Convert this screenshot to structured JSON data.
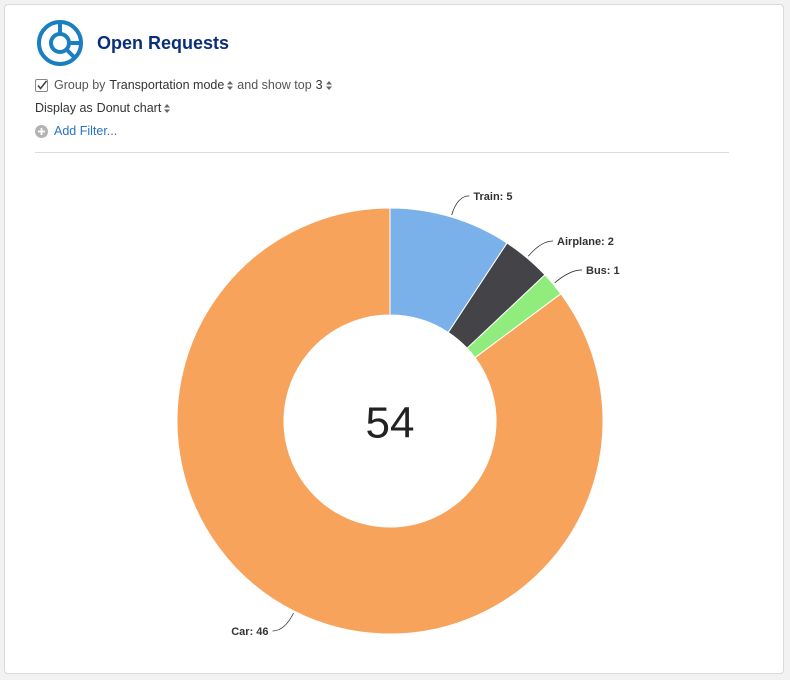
{
  "widget": {
    "title": "Open Requests",
    "icon": "donut-chart-icon",
    "accent_color": "#1a7fc0"
  },
  "controls": {
    "group_checked": true,
    "group_by_prefix": "Group by",
    "group_by_value": "Transportation mode",
    "show_top_prefix": "and show top",
    "show_top_value": "3",
    "display_prefix": "Display as",
    "display_value": "Donut chart",
    "add_filter": "Add Filter..."
  },
  "chart_data": {
    "type": "pie",
    "variant": "donut",
    "center_label": "54",
    "slices": [
      {
        "name": "Train",
        "value": 5,
        "label": "Train: 5",
        "color": "#7ab1ea"
      },
      {
        "name": "Airplane",
        "value": 2,
        "label": "Airplane: 2",
        "color": "#434348"
      },
      {
        "name": "Bus",
        "value": 1,
        "label": "Bus: 1",
        "color": "#90ed7d"
      },
      {
        "name": "Car",
        "value": 46,
        "label": "Car: 46",
        "color": "#f7a35c"
      }
    ]
  }
}
